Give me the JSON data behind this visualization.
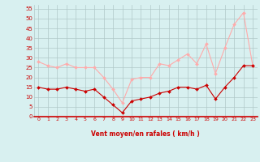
{
  "x": [
    0,
    1,
    2,
    3,
    4,
    5,
    6,
    7,
    8,
    9,
    10,
    11,
    12,
    13,
    14,
    15,
    16,
    17,
    18,
    19,
    20,
    21,
    22,
    23
  ],
  "wind_avg": [
    15,
    14,
    14,
    15,
    14,
    13,
    14,
    10,
    6,
    2,
    8,
    9,
    10,
    12,
    13,
    15,
    15,
    14,
    16,
    9,
    15,
    20,
    26,
    26
  ],
  "wind_gust": [
    28,
    26,
    25,
    27,
    25,
    25,
    25,
    20,
    14,
    7,
    19,
    20,
    20,
    27,
    26,
    29,
    32,
    27,
    37,
    22,
    35,
    47,
    53,
    26
  ],
  "bg_color": "#d8f0f0",
  "grid_color": "#b0c8c8",
  "line_avg_color": "#cc0000",
  "line_gust_color": "#ffaaaa",
  "xlabel": "Vent moyen/en rafales ( km/h )",
  "xlabel_color": "#cc0000",
  "tick_color": "#cc0000",
  "ylim": [
    0,
    57
  ],
  "xlim": [
    -0.5,
    23.5
  ],
  "yticks": [
    0,
    5,
    10,
    15,
    20,
    25,
    30,
    35,
    40,
    45,
    50,
    55
  ],
  "xticks": [
    0,
    1,
    2,
    3,
    4,
    5,
    6,
    7,
    8,
    9,
    10,
    11,
    12,
    13,
    14,
    15,
    16,
    17,
    18,
    19,
    20,
    21,
    22,
    23
  ]
}
